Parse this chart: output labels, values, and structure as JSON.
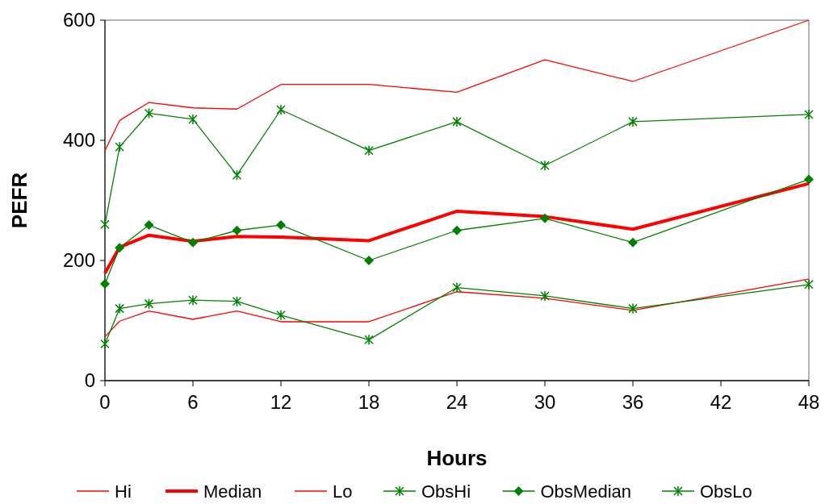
{
  "chart_data": {
    "type": "line",
    "xlabel": "Hours",
    "ylabel": "PEFR",
    "x": [
      0,
      1,
      3,
      6,
      9,
      12,
      18,
      24,
      30,
      36,
      48
    ],
    "xlim": [
      0,
      48
    ],
    "xticks": [
      0,
      6,
      12,
      18,
      24,
      30,
      36,
      42,
      48
    ],
    "ylim": [
      0,
      600
    ],
    "yticks": [
      0,
      200,
      400,
      600
    ],
    "grid": false,
    "legend": "bottom",
    "series": [
      {
        "name": "Hi",
        "color": "#ff0000",
        "marker": "none",
        "values": [
          383,
          433,
          463,
          454,
          452,
          493,
          493,
          480,
          534,
          498,
          600
        ]
      },
      {
        "name": "Median",
        "color": "#ff0000",
        "marker": "none",
        "values": [
          179,
          222,
          242,
          232,
          240,
          239,
          233,
          282,
          273,
          252,
          328
        ]
      },
      {
        "name": "Lo",
        "color": "#ff0000",
        "marker": "none",
        "values": [
          73,
          99,
          116,
          102,
          116,
          98,
          98,
          148,
          137,
          117,
          169
        ]
      },
      {
        "name": "ObsHi",
        "color": "#008000",
        "marker": "cross",
        "values": [
          260,
          389,
          445,
          435,
          342,
          451,
          383,
          431,
          358,
          431,
          443
        ]
      },
      {
        "name": "ObsMedian",
        "color": "#008000",
        "marker": "diamond",
        "values": [
          161,
          221,
          259,
          230,
          250,
          259,
          200,
          250,
          270,
          230,
          335
        ]
      },
      {
        "name": "ObsLo",
        "color": "#008000",
        "marker": "cross",
        "values": [
          61,
          120,
          128,
          134,
          132,
          109,
          68,
          155,
          141,
          120,
          160
        ]
      }
    ]
  }
}
